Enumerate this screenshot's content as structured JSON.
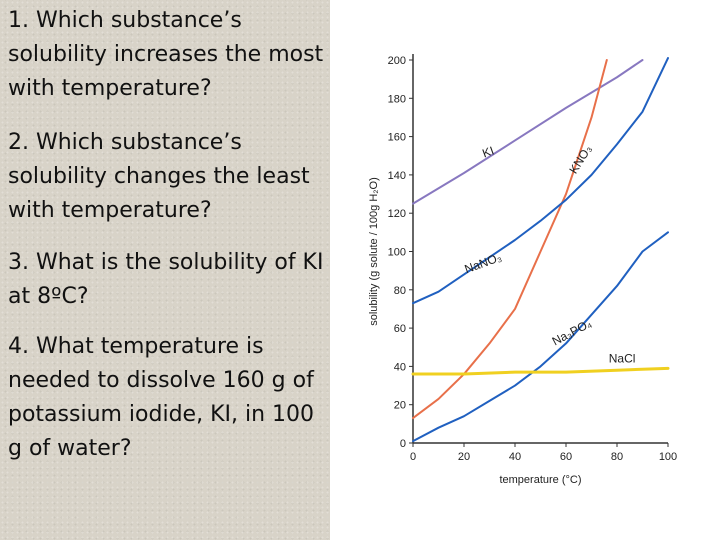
{
  "questions": [
    "1. Which substance’s solubility increases the most with temperature?",
    "2. Which substance’s solubility changes the least with temperature?",
    "3. What is the solubility of KI at 8ºC?",
    "4. What temperature is needed to dissolve 160 g of potassium iodide, KI, in 100 g of water?"
  ],
  "chart_data": {
    "type": "line",
    "title": "",
    "xlabel": "temperature (°C)",
    "ylabel": "solubility (g solute / 100g H₂O)",
    "xlim": [
      0,
      100
    ],
    "ylim": [
      0,
      200
    ],
    "xticks": [
      0,
      20,
      40,
      60,
      80,
      100
    ],
    "yticks": [
      0,
      20,
      40,
      60,
      80,
      100,
      120,
      140,
      160,
      180,
      200
    ],
    "grid": false,
    "legend": "none",
    "series": [
      {
        "name": "KI",
        "color": "#8878c0",
        "x": [
          0,
          20,
          40,
          60,
          80,
          90
        ],
        "y": [
          125,
          141,
          158,
          175,
          191,
          200
        ]
      },
      {
        "name": "KNO₃",
        "color": "#e8704a",
        "x": [
          0,
          10,
          20,
          30,
          40,
          50,
          60,
          70,
          76
        ],
        "y": [
          13,
          23,
          36,
          52,
          70,
          100,
          130,
          170,
          200
        ]
      },
      {
        "name": "NaNO₃",
        "color": "#2060c0",
        "x": [
          0,
          10,
          20,
          30,
          40,
          50,
          60,
          70,
          80,
          90,
          100
        ],
        "y": [
          73,
          79,
          88,
          97,
          106,
          116,
          127,
          140,
          156,
          173,
          201
        ]
      },
      {
        "name": "Na₃PO₄",
        "color": "#2060c0",
        "x": [
          0,
          10,
          20,
          30,
          40,
          50,
          60,
          70,
          80,
          90,
          100
        ],
        "y": [
          1,
          8,
          14,
          22,
          30,
          40,
          52,
          67,
          82,
          100,
          110
        ]
      },
      {
        "name": "NaCl",
        "color": "#f0d020",
        "x": [
          0,
          20,
          40,
          60,
          80,
          100
        ],
        "y": [
          36,
          36,
          37,
          37,
          38,
          39
        ]
      }
    ]
  }
}
